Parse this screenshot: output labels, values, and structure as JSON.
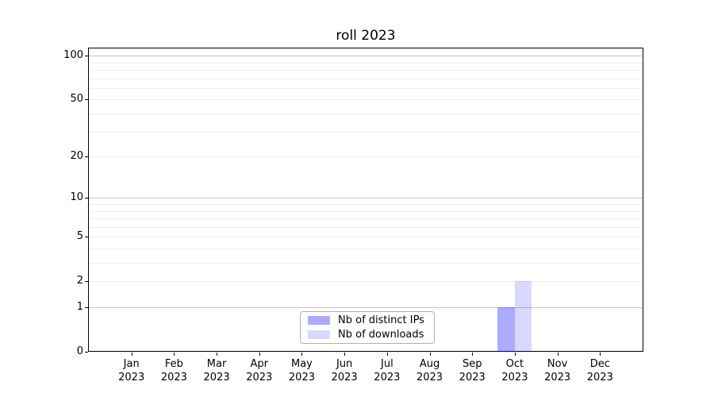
{
  "chart_data": {
    "type": "bar",
    "title": "roll 2023",
    "categories": [
      "Jan",
      "Feb",
      "Mar",
      "Apr",
      "May",
      "Jun",
      "Jul",
      "Aug",
      "Sep",
      "Oct",
      "Nov",
      "Dec"
    ],
    "year_label": "2023",
    "series": [
      {
        "name": "Nb of distinct IPs",
        "color": "rgba(0,0,255,0.33)",
        "values": [
          0,
          0,
          0,
          0,
          0,
          0,
          0,
          0,
          0,
          1,
          0,
          0
        ]
      },
      {
        "name": "Nb of downloads",
        "color": "rgba(0,0,255,0.15)",
        "values": [
          0,
          0,
          0,
          0,
          0,
          0,
          0,
          0,
          0,
          2,
          0,
          0
        ]
      }
    ],
    "xlabel": "",
    "ylabel": "",
    "y_axis": {
      "scale": "log1p",
      "tick_labels": [
        0,
        1,
        2,
        5,
        10,
        20,
        50,
        100
      ],
      "major_gridlines": [
        1,
        10,
        100
      ],
      "minor_gridlines": [
        2,
        3,
        4,
        5,
        6,
        7,
        8,
        9,
        20,
        30,
        40,
        50,
        60,
        70,
        80,
        90
      ],
      "ylim_bottom": 0
    },
    "legend": {
      "location": "lower center"
    },
    "grid": true,
    "colors": {
      "bar_distinct_ips": "#ababf8",
      "bar_downloads": "#dadaf8",
      "gridline_major": "#c4c4c4",
      "gridline_minor": "#ededed",
      "axis": "#000000",
      "legend_border": "#b0b0b0",
      "background": "#ffffff"
    }
  }
}
